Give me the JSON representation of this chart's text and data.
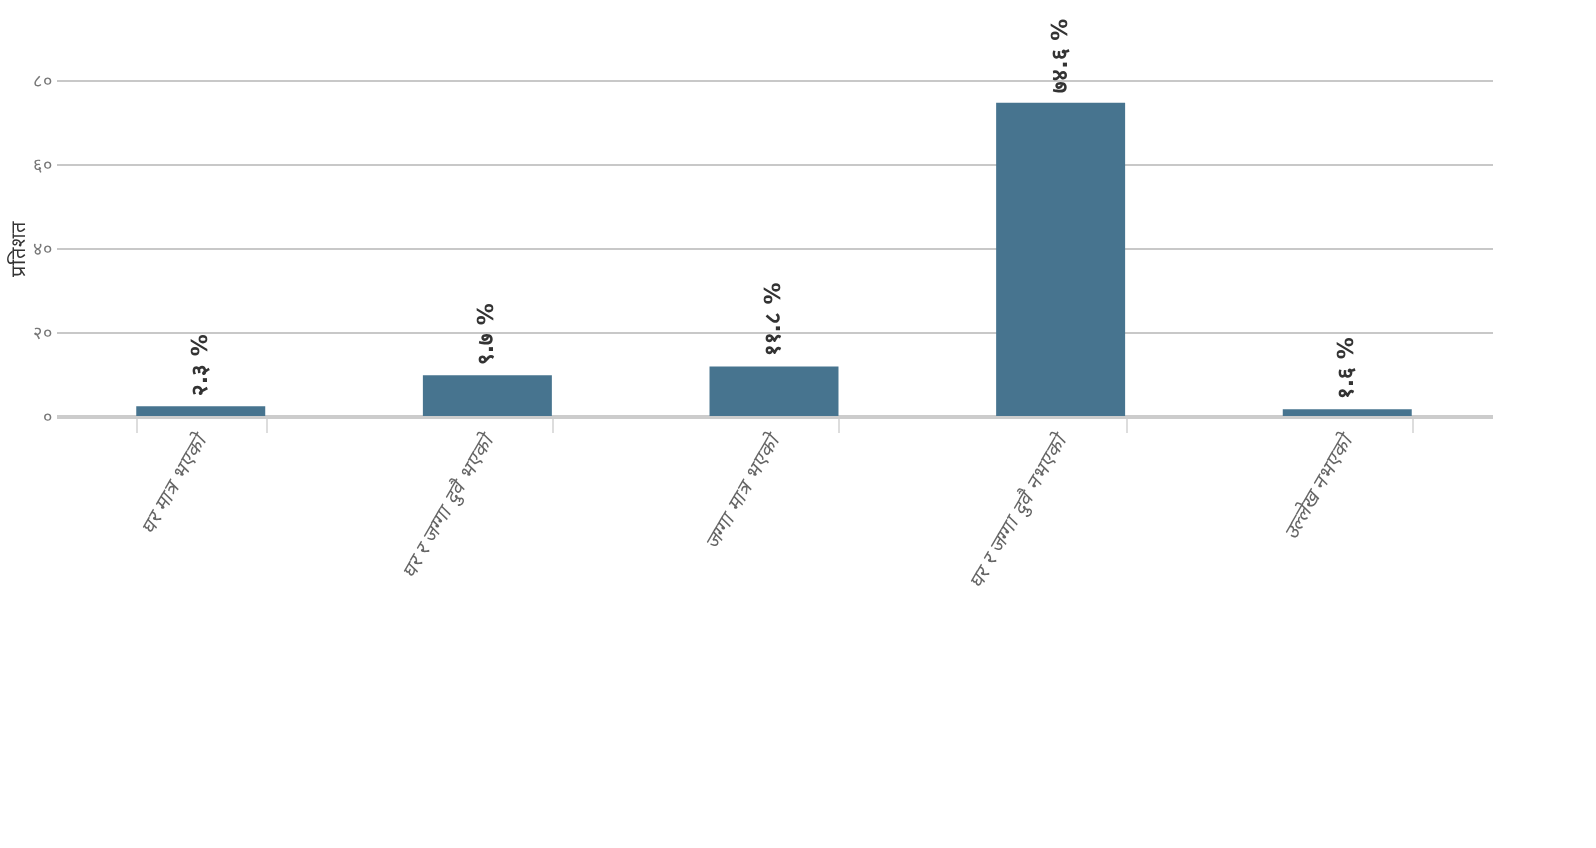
{
  "chart_data": {
    "type": "bar",
    "ylabel": "प्रतिशत",
    "categories": [
      "घर मात्र भएको",
      "घर र जग्गा दुवै भएको",
      "जग्गा मात्र भएको",
      "घर र जग्गा दुवै नभएको",
      "उल्लेख नभएको"
    ],
    "values": [
      2.3,
      9.7,
      11.8,
      74.6,
      1.6
    ],
    "value_labels": [
      "२.३ %",
      "९.७ %",
      "११.८ %",
      "७४.६ %",
      "१.६ %"
    ],
    "color": "#47748f",
    "ylim": [
      0,
      80
    ],
    "yticks": [
      {
        "value": 0,
        "label": "०"
      },
      {
        "value": 20,
        "label": "२०"
      },
      {
        "value": 40,
        "label": "४०"
      },
      {
        "value": 60,
        "label": "६०"
      },
      {
        "value": 80,
        "label": "८०"
      }
    ],
    "grid": "y"
  }
}
